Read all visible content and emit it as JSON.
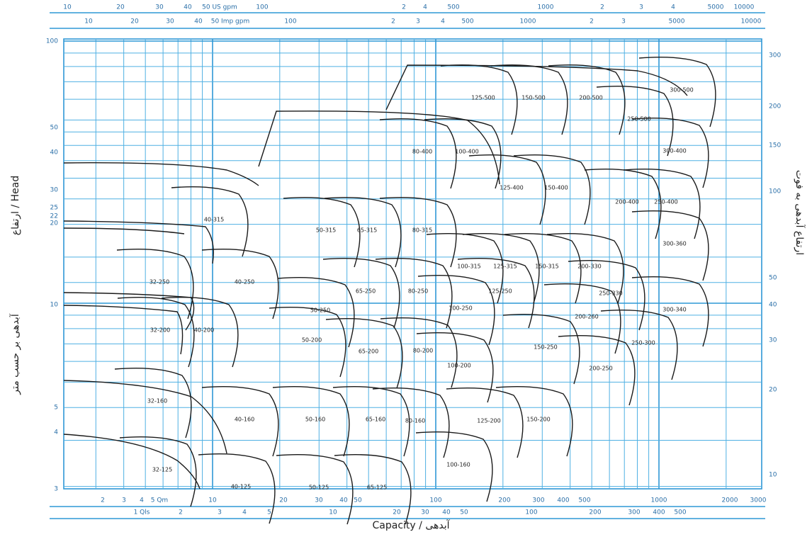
{
  "axes": {
    "top_us_gpm": [
      "10",
      "20",
      "30",
      "40",
      "50 US gpm",
      "100",
      "2",
      "4",
      "500",
      "1000",
      "2",
      "3",
      "4",
      "5000",
      "10000"
    ],
    "top_imp_gpm": [
      "10",
      "20",
      "30",
      "40",
      "50 Imp gpm",
      "100",
      "2",
      "3",
      "4",
      "500",
      "1000",
      "2",
      "3",
      "5000",
      "10000"
    ],
    "left_m": [
      "100",
      "50",
      "40",
      "30",
      "25",
      "22",
      "20",
      "10",
      "5",
      "4",
      "3"
    ],
    "right_ft": [
      "300",
      "200",
      "150",
      "100",
      "50",
      "40",
      "30",
      "20",
      "10"
    ],
    "bottom_m3h": [
      "2",
      "3",
      "4",
      "5 Qm",
      "10",
      "20",
      "30",
      "40",
      "50",
      "100",
      "200",
      "300",
      "400",
      "500",
      "1000",
      "2000",
      "3000"
    ],
    "bottom_ls": [
      "1 Qls",
      "2",
      "3",
      "4",
      "5",
      "10",
      "20",
      "30",
      "40",
      "50",
      "100",
      "200",
      "300",
      "400",
      "500"
    ],
    "left_title_1": "ارتفاع / Head",
    "left_title_2": "آبدهی بر حسب متر",
    "right_title": "ارتفاع آبدهی به فوت",
    "bottom_title": "Capacity / آبدهی"
  },
  "tiles": [
    "32-125",
    "40-125",
    "50-125",
    "65-125",
    "32-160",
    "40-160",
    "50-160",
    "65-160",
    "80-160",
    "100-160",
    "125-200",
    "150-200",
    "32-200",
    "40-200",
    "50-200",
    "65-200",
    "80-200",
    "100-200",
    "150-250",
    "200-250",
    "250-300",
    "32-250",
    "40-250",
    "50-250",
    "65-250",
    "80-250",
    "100-250",
    "125-250",
    "200-260",
    "250-330",
    "300-340",
    "40-315",
    "50-315",
    "65-315",
    "80-315",
    "100-315",
    "125-315",
    "150-315",
    "200-330",
    "300-360",
    "80-400",
    "100-400",
    "125-400",
    "150-400",
    "200-400",
    "250-400",
    "300-400",
    "125-500",
    "150-500",
    "200-500",
    "250-500",
    "300-500"
  ]
}
